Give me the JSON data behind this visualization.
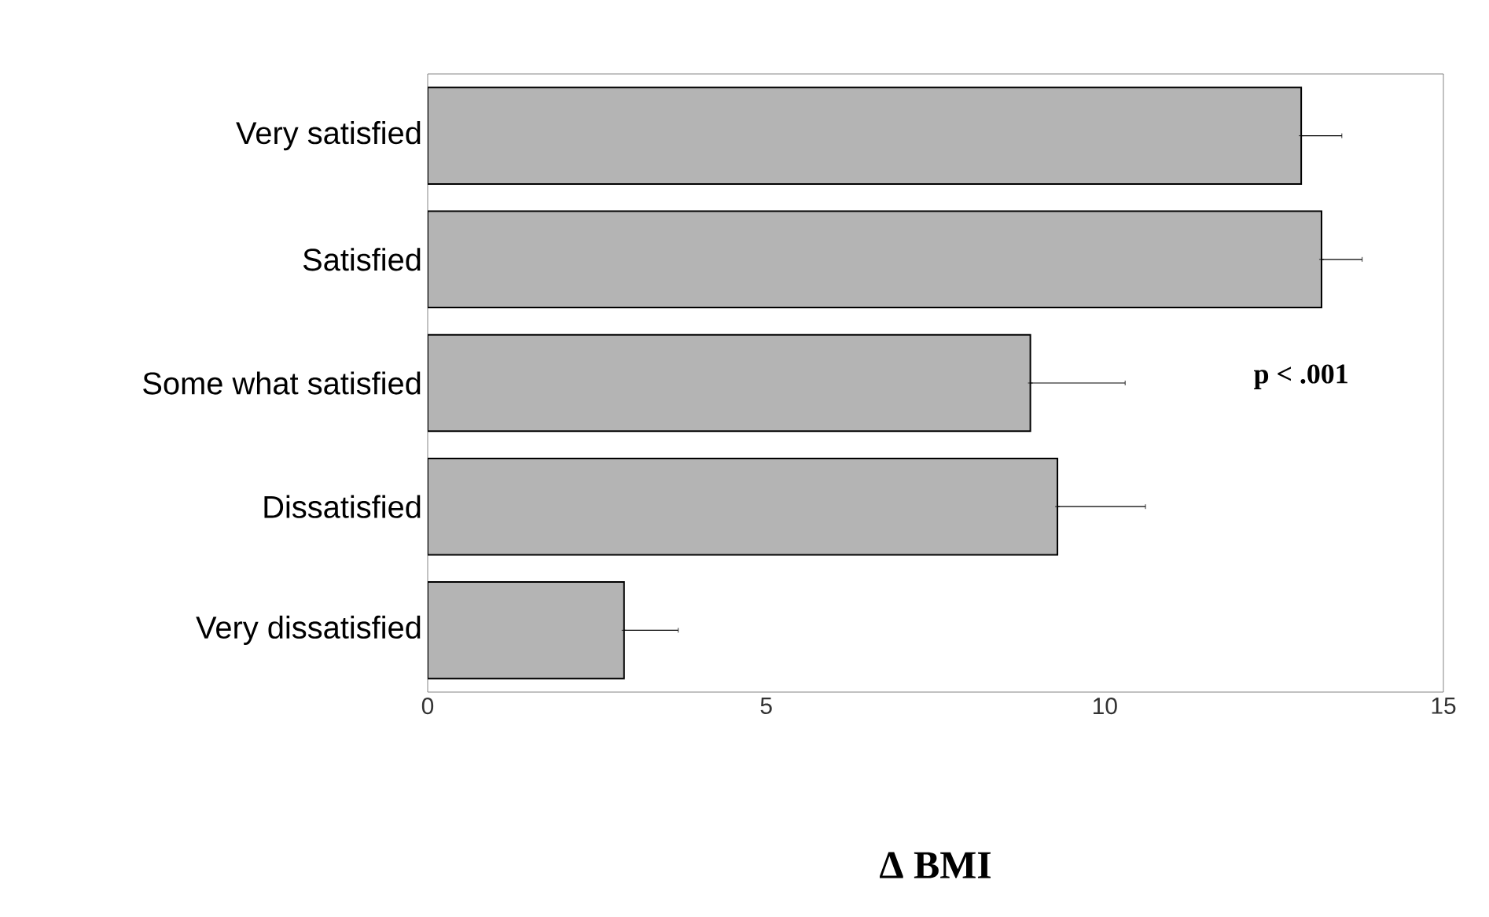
{
  "chart_data": {
    "type": "bar",
    "orientation": "horizontal",
    "xlabel": "Δ BMI",
    "categories": [
      "Very satisfied",
      "Satisfied",
      "Some what satisfied",
      "Dissatisfied",
      "Very dissatisfied"
    ],
    "values": [
      12.9,
      13.2,
      8.9,
      9.3,
      2.9
    ],
    "errors": [
      [
        12.9,
        13.5
      ],
      [
        13.2,
        13.8
      ],
      [
        8.9,
        10.3
      ],
      [
        9.3,
        10.6
      ],
      [
        2.9,
        3.7
      ]
    ],
    "color": "#b4b4b4",
    "xlim": [
      0,
      15
    ],
    "xticks": [
      0,
      5,
      10,
      15
    ],
    "annotations": [
      "p < .001"
    ]
  }
}
